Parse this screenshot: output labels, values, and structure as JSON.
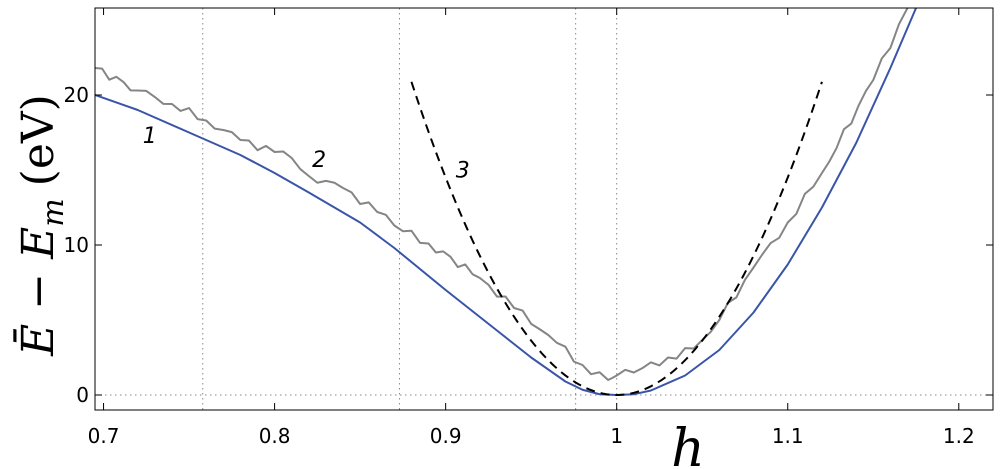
{
  "chart_data": {
    "type": "line",
    "xlabel": "h",
    "ylabel": {
      "text": "Ē − E",
      "subscript": "m",
      "unit": "(eV)"
    },
    "xlim": [
      0.695,
      1.22
    ],
    "ylim": [
      -1,
      25.8
    ],
    "x_ticks": [
      0.7,
      0.8,
      0.9,
      1,
      1.1,
      1.2
    ],
    "x_tick_labels": [
      "0.7",
      "0.8",
      "0.9",
      "1",
      "1.1",
      "1.2"
    ],
    "y_ticks": [
      0,
      10,
      20
    ],
    "y_tick_labels": [
      "0",
      "10",
      "20"
    ],
    "reference_lines": {
      "vertical_dotted_x": [
        0.758,
        0.873,
        0.976,
        1.0
      ],
      "horizontal_dotted_y": [
        0
      ]
    },
    "colors": {
      "1": "#3a55a8",
      "2": "#858585",
      "3": "#000000"
    },
    "series": [
      {
        "name": "1",
        "style": "solid",
        "points": [
          [
            0.695,
            20.0
          ],
          [
            0.72,
            19.0
          ],
          [
            0.75,
            17.5
          ],
          [
            0.78,
            16.0
          ],
          [
            0.8,
            14.8
          ],
          [
            0.82,
            13.5
          ],
          [
            0.85,
            11.5
          ],
          [
            0.87,
            9.8
          ],
          [
            0.9,
            7.0
          ],
          [
            0.93,
            4.3
          ],
          [
            0.95,
            2.5
          ],
          [
            0.97,
            0.9
          ],
          [
            0.98,
            0.35
          ],
          [
            0.99,
            0.05
          ],
          [
            1.0,
            0.0
          ],
          [
            1.01,
            0.05
          ],
          [
            1.02,
            0.3
          ],
          [
            1.04,
            1.3
          ],
          [
            1.06,
            3.0
          ],
          [
            1.08,
            5.5
          ],
          [
            1.1,
            8.7
          ],
          [
            1.12,
            12.5
          ],
          [
            1.14,
            16.8
          ],
          [
            1.16,
            21.8
          ],
          [
            1.175,
            25.8
          ]
        ]
      },
      {
        "name": "2",
        "style": "jagged",
        "points": [
          [
            0.695,
            21.8
          ],
          [
            0.72,
            20.3
          ],
          [
            0.74,
            19.4
          ],
          [
            0.76,
            18.3
          ],
          [
            0.78,
            17.0
          ],
          [
            0.8,
            16.2
          ],
          [
            0.81,
            15.8
          ],
          [
            0.82,
            14.6
          ],
          [
            0.84,
            13.8
          ],
          [
            0.86,
            12.2
          ],
          [
            0.87,
            11.3
          ],
          [
            0.89,
            10.1
          ],
          [
            0.92,
            7.8
          ],
          [
            0.94,
            5.8
          ],
          [
            0.96,
            4.0
          ],
          [
            0.98,
            2.0
          ],
          [
            0.995,
            1.0
          ],
          [
            1.0,
            1.3
          ],
          [
            1.01,
            1.5
          ],
          [
            1.03,
            2.5
          ],
          [
            1.045,
            3.1
          ],
          [
            1.06,
            5.0
          ],
          [
            1.08,
            8.5
          ],
          [
            1.1,
            11.5
          ],
          [
            1.12,
            14.8
          ],
          [
            1.15,
            21.0
          ],
          [
            1.17,
            25.8
          ]
        ]
      },
      {
        "name": "3",
        "style": "dashed",
        "x_min": 0.88,
        "x_max": 1.12,
        "model": "parabola",
        "min_x": 1.0,
        "curvature": 1450
      }
    ],
    "annotations": [
      {
        "text": "1",
        "x": 0.727,
        "y": 16.8
      },
      {
        "text": "2",
        "x": 0.826,
        "y": 15.2
      },
      {
        "text": "3",
        "x": 0.91,
        "y": 14.5
      }
    ]
  }
}
